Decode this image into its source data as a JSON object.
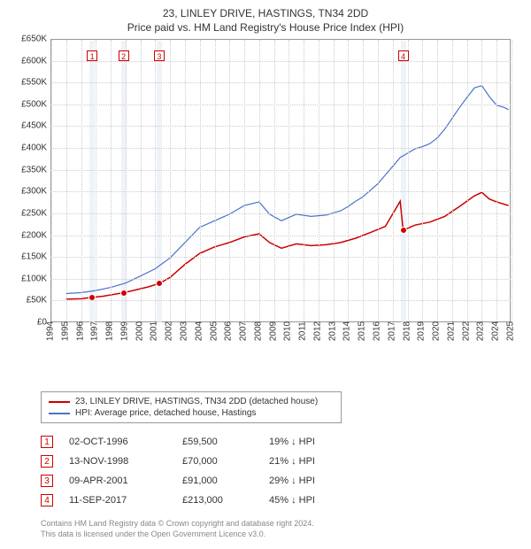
{
  "title_line1": "23, LINLEY DRIVE, HASTINGS, TN34 2DD",
  "title_line2": "Price paid vs. HM Land Registry's House Price Index (HPI)",
  "chart": {
    "type": "line",
    "xlim": [
      1994,
      2025
    ],
    "ylim": [
      0,
      650000
    ],
    "ytick_step": 50000,
    "y_tick_labels": [
      "£0",
      "£50K",
      "£100K",
      "£150K",
      "£200K",
      "£250K",
      "£300K",
      "£350K",
      "£400K",
      "£450K",
      "£500K",
      "£550K",
      "£600K",
      "£650K"
    ],
    "x_ticks": [
      1994,
      1995,
      1996,
      1997,
      1998,
      1999,
      2000,
      2001,
      2002,
      2003,
      2004,
      2005,
      2006,
      2007,
      2008,
      2009,
      2010,
      2011,
      2012,
      2013,
      2014,
      2015,
      2016,
      2017,
      2018,
      2019,
      2020,
      2021,
      2022,
      2023,
      2024,
      2025
    ],
    "grid_color": "#cccccc",
    "background_color": "#ffffff",
    "band_color": "#e8eef7",
    "plot_border": "#999999",
    "series": [
      {
        "name": "price_paid",
        "label": "23, LINLEY DRIVE, HASTINGS, TN34 2DD (detached house)",
        "color": "#cc0000",
        "line_width": 1.5,
        "data": [
          [
            1995.0,
            55000
          ],
          [
            1996.0,
            56000
          ],
          [
            1996.75,
            59500
          ],
          [
            1997.5,
            62000
          ],
          [
            1998.87,
            70000
          ],
          [
            1999.5,
            75000
          ],
          [
            2000.5,
            83000
          ],
          [
            2001.27,
            91000
          ],
          [
            2002.0,
            105000
          ],
          [
            2003.0,
            135000
          ],
          [
            2004.0,
            160000
          ],
          [
            2005.0,
            175000
          ],
          [
            2006.0,
            185000
          ],
          [
            2007.0,
            198000
          ],
          [
            2008.0,
            205000
          ],
          [
            2008.7,
            185000
          ],
          [
            2009.5,
            172000
          ],
          [
            2010.5,
            182000
          ],
          [
            2011.5,
            178000
          ],
          [
            2012.5,
            180000
          ],
          [
            2013.5,
            185000
          ],
          [
            2014.5,
            195000
          ],
          [
            2015.5,
            208000
          ],
          [
            2016.5,
            222000
          ],
          [
            2017.5,
            280000
          ],
          [
            2017.7,
            213000
          ],
          [
            2018.5,
            225000
          ],
          [
            2019.5,
            232000
          ],
          [
            2020.5,
            245000
          ],
          [
            2021.5,
            268000
          ],
          [
            2022.5,
            292000
          ],
          [
            2023.0,
            300000
          ],
          [
            2023.5,
            285000
          ],
          [
            2024.0,
            278000
          ],
          [
            2024.8,
            270000
          ]
        ]
      },
      {
        "name": "hpi",
        "label": "HPI: Average price, detached house, Hastings",
        "color": "#4a74c9",
        "line_width": 1.2,
        "data": [
          [
            1995.0,
            68000
          ],
          [
            1996.0,
            70000
          ],
          [
            1997.0,
            75000
          ],
          [
            1998.0,
            82000
          ],
          [
            1999.0,
            92000
          ],
          [
            2000.0,
            108000
          ],
          [
            2001.0,
            125000
          ],
          [
            2002.0,
            150000
          ],
          [
            2003.0,
            185000
          ],
          [
            2004.0,
            220000
          ],
          [
            2005.0,
            235000
          ],
          [
            2006.0,
            250000
          ],
          [
            2007.0,
            270000
          ],
          [
            2008.0,
            278000
          ],
          [
            2008.7,
            250000
          ],
          [
            2009.5,
            235000
          ],
          [
            2010.5,
            250000
          ],
          [
            2011.5,
            245000
          ],
          [
            2012.5,
            248000
          ],
          [
            2013.5,
            258000
          ],
          [
            2014.0,
            268000
          ],
          [
            2014.5,
            280000
          ],
          [
            2015.0,
            290000
          ],
          [
            2015.5,
            305000
          ],
          [
            2016.0,
            320000
          ],
          [
            2016.5,
            340000
          ],
          [
            2017.0,
            360000
          ],
          [
            2017.5,
            380000
          ],
          [
            2018.0,
            390000
          ],
          [
            2018.5,
            400000
          ],
          [
            2019.0,
            405000
          ],
          [
            2019.5,
            412000
          ],
          [
            2020.0,
            425000
          ],
          [
            2020.5,
            445000
          ],
          [
            2021.0,
            470000
          ],
          [
            2021.5,
            495000
          ],
          [
            2022.0,
            518000
          ],
          [
            2022.5,
            540000
          ],
          [
            2023.0,
            545000
          ],
          [
            2023.5,
            520000
          ],
          [
            2024.0,
            500000
          ],
          [
            2024.5,
            495000
          ],
          [
            2024.8,
            490000
          ]
        ]
      }
    ],
    "sale_markers": [
      {
        "n": "1",
        "x": 1996.75,
        "y": 59500,
        "box_top": 12
      },
      {
        "n": "2",
        "x": 1998.87,
        "y": 70000,
        "box_top": 12
      },
      {
        "n": "3",
        "x": 2001.27,
        "y": 91000,
        "box_top": 12
      },
      {
        "n": "4",
        "x": 2017.7,
        "y": 213000,
        "box_top": 12
      }
    ]
  },
  "legend": {
    "items": [
      {
        "color": "#cc0000",
        "label": "23, LINLEY DRIVE, HASTINGS, TN34 2DD (detached house)"
      },
      {
        "color": "#4a74c9",
        "label": "HPI: Average price, detached house, Hastings"
      }
    ]
  },
  "sales": [
    {
      "n": "1",
      "date": "02-OCT-1996",
      "price": "£59,500",
      "delta": "19% ↓ HPI"
    },
    {
      "n": "2",
      "date": "13-NOV-1998",
      "price": "£70,000",
      "delta": "21% ↓ HPI"
    },
    {
      "n": "3",
      "date": "09-APR-2001",
      "price": "£91,000",
      "delta": "29% ↓ HPI"
    },
    {
      "n": "4",
      "date": "11-SEP-2017",
      "price": "£213,000",
      "delta": "45% ↓ HPI"
    }
  ],
  "footer_line1": "Contains HM Land Registry data © Crown copyright and database right 2024.",
  "footer_line2": "This data is licensed under the Open Government Licence v3.0."
}
